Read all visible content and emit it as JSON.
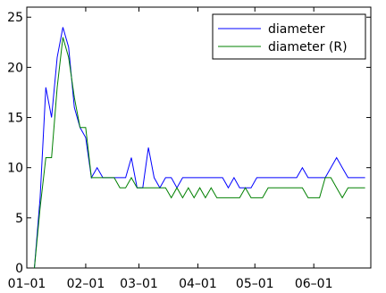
{
  "chart_data": {
    "type": "line",
    "title": "",
    "xlabel": "",
    "ylabel": "",
    "x_tick_labels": [
      "01–01",
      "02–01",
      "03–01",
      "04–01",
      "05–01",
      "06–01"
    ],
    "y_ticks": [
      0,
      5,
      10,
      15,
      20,
      25
    ],
    "ylim": [
      0,
      26
    ],
    "legend_position": "top-right",
    "grid": false,
    "series": [
      {
        "name": "diameter",
        "color": "#0000ff",
        "points": [
          [
            4,
            0
          ],
          [
            7,
            7
          ],
          [
            10,
            18
          ],
          [
            13,
            15
          ],
          [
            16,
            21
          ],
          [
            19,
            24
          ],
          [
            22,
            22
          ],
          [
            25,
            16
          ],
          [
            28,
            14
          ],
          [
            31,
            13
          ],
          [
            34,
            9
          ],
          [
            37,
            10
          ],
          [
            40,
            9
          ],
          [
            43,
            9
          ],
          [
            46,
            9
          ],
          [
            49,
            9
          ],
          [
            52,
            9
          ],
          [
            55,
            11
          ],
          [
            58,
            8
          ],
          [
            61,
            8
          ],
          [
            64,
            12
          ],
          [
            67,
            9
          ],
          [
            70,
            8
          ],
          [
            73,
            9
          ],
          [
            76,
            9
          ],
          [
            79,
            8
          ],
          [
            82,
            9
          ],
          [
            85,
            9
          ],
          [
            88,
            9
          ],
          [
            91,
            9
          ],
          [
            94,
            9
          ],
          [
            97,
            9
          ],
          [
            100,
            9
          ],
          [
            103,
            9
          ],
          [
            106,
            8
          ],
          [
            109,
            9
          ],
          [
            112,
            8
          ],
          [
            115,
            8
          ],
          [
            118,
            8
          ],
          [
            121,
            9
          ],
          [
            124,
            9
          ],
          [
            127,
            9
          ],
          [
            130,
            9
          ],
          [
            133,
            9
          ],
          [
            136,
            9
          ],
          [
            139,
            9
          ],
          [
            142,
            9
          ],
          [
            145,
            10
          ],
          [
            148,
            9
          ],
          [
            151,
            9
          ],
          [
            154,
            9
          ],
          [
            157,
            9
          ],
          [
            160,
            10
          ],
          [
            163,
            11
          ],
          [
            166,
            10
          ],
          [
            169,
            9
          ],
          [
            172,
            9
          ],
          [
            175,
            9
          ],
          [
            178,
            9
          ]
        ]
      },
      {
        "name": "diameter (R)",
        "color": "#008000",
        "points": [
          [
            4,
            0
          ],
          [
            7,
            6
          ],
          [
            10,
            11
          ],
          [
            13,
            11
          ],
          [
            16,
            18
          ],
          [
            19,
            23
          ],
          [
            22,
            21
          ],
          [
            25,
            17
          ],
          [
            28,
            14
          ],
          [
            31,
            14
          ],
          [
            34,
            9
          ],
          [
            37,
            9
          ],
          [
            40,
            9
          ],
          [
            43,
            9
          ],
          [
            46,
            9
          ],
          [
            49,
            8
          ],
          [
            52,
            8
          ],
          [
            55,
            9
          ],
          [
            58,
            8
          ],
          [
            61,
            8
          ],
          [
            64,
            8
          ],
          [
            67,
            8
          ],
          [
            70,
            8
          ],
          [
            73,
            8
          ],
          [
            76,
            7
          ],
          [
            79,
            8
          ],
          [
            82,
            7
          ],
          [
            85,
            8
          ],
          [
            88,
            7
          ],
          [
            91,
            8
          ],
          [
            94,
            7
          ],
          [
            97,
            8
          ],
          [
            100,
            7
          ],
          [
            103,
            7
          ],
          [
            106,
            7
          ],
          [
            109,
            7
          ],
          [
            112,
            7
          ],
          [
            115,
            8
          ],
          [
            118,
            7
          ],
          [
            121,
            7
          ],
          [
            124,
            7
          ],
          [
            127,
            8
          ],
          [
            130,
            8
          ],
          [
            133,
            8
          ],
          [
            136,
            8
          ],
          [
            139,
            8
          ],
          [
            142,
            8
          ],
          [
            145,
            8
          ],
          [
            148,
            7
          ],
          [
            151,
            7
          ],
          [
            154,
            7
          ],
          [
            157,
            9
          ],
          [
            160,
            9
          ],
          [
            163,
            8
          ],
          [
            166,
            7
          ],
          [
            169,
            8
          ],
          [
            172,
            8
          ],
          [
            175,
            8
          ],
          [
            178,
            8
          ]
        ]
      }
    ]
  }
}
